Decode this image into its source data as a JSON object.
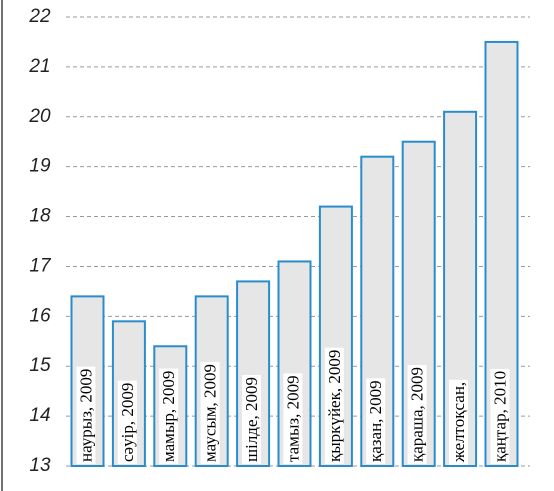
{
  "chart_data": {
    "type": "bar",
    "categories": [
      "наурыз, 2009",
      "сәуір, 2009",
      "мамыр, 2009",
      "маусым, 2009",
      "шілде, 2009",
      "тамыз, 2009",
      "қыркүйек, 2009",
      "қазан, 2009",
      "қараша, 2009",
      "желтоқсан,",
      "қаңтар, 2010"
    ],
    "values": [
      16.4,
      15.9,
      15.4,
      16.4,
      16.7,
      17.1,
      18.2,
      19.2,
      19.5,
      20.1,
      21.5
    ],
    "color": "#e6e6e6",
    "edge_color": "#2a8ccb",
    "ylim": [
      13,
      22
    ],
    "yticks": [
      13,
      14,
      15,
      16,
      17,
      18,
      19,
      20,
      21,
      22
    ],
    "grid": true
  }
}
